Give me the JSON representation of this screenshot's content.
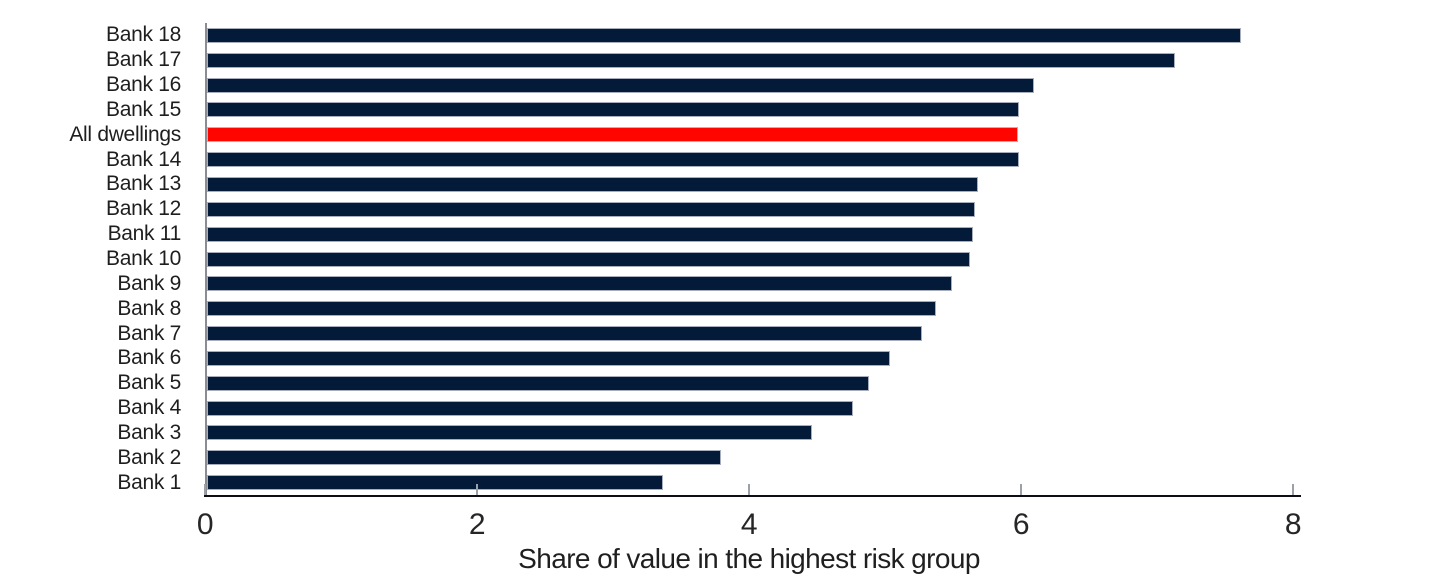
{
  "chart_data": {
    "type": "bar",
    "orientation": "horizontal",
    "title": "",
    "xlabel": "Share of value in the highest risk group",
    "ylabel": "",
    "xlim": [
      0,
      8
    ],
    "x_ticks": [
      "0",
      "2",
      "4",
      "6",
      "8"
    ],
    "x_tick_values": [
      0,
      2,
      4,
      6,
      8
    ],
    "grid": false,
    "legend": "none",
    "categories": [
      "Bank 18",
      "Bank 17",
      "Bank 16",
      "Bank 15",
      "All dwellings",
      "Bank 14",
      "Bank 13",
      "Bank 12",
      "Bank 11",
      "Bank 10",
      "Bank 9",
      "Bank 8",
      "Bank 7",
      "Bank 6",
      "Bank 5",
      "Bank 4",
      "Bank 3",
      "Bank 2",
      "Bank 1"
    ],
    "values": [
      7.6,
      7.12,
      6.08,
      5.97,
      5.96,
      5.97,
      5.67,
      5.65,
      5.63,
      5.61,
      5.48,
      5.36,
      5.26,
      5.02,
      4.87,
      4.75,
      4.45,
      3.78,
      3.35
    ],
    "highlight_category": "All dwellings",
    "colors": {
      "bar": "#041A39",
      "highlight": "#FE0500",
      "axis_line": "#0C0E13",
      "spine": "#8B8B92",
      "tick": "#9CA0A8",
      "text": "#1F1F1F"
    }
  }
}
